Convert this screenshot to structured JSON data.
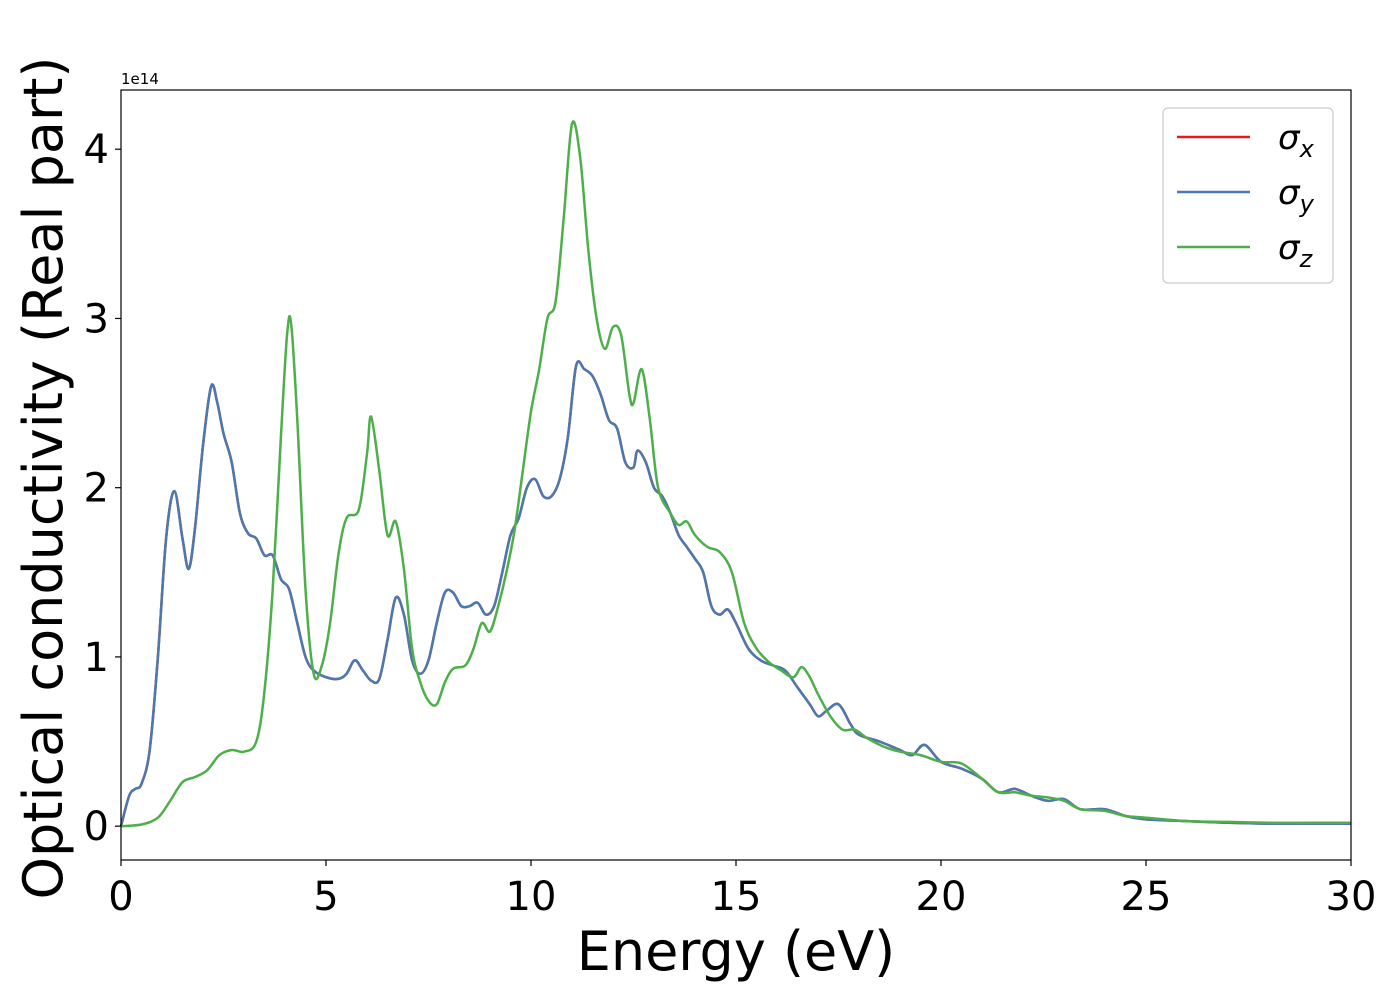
{
  "chart_data": {
    "type": "line",
    "xlabel": "Energy (eV)",
    "ylabel": "Optical conductivity (Real part)",
    "y_offset_text": "1e14",
    "xlim": [
      0,
      30
    ],
    "ylim": [
      -0.2,
      4.35
    ],
    "x_ticks": [
      0,
      5,
      10,
      15,
      20,
      25,
      30
    ],
    "y_ticks": [
      0,
      1,
      2,
      3,
      4
    ],
    "grid": false,
    "legend_position": "top-right",
    "series": [
      {
        "name": "σx",
        "symbol": "σ",
        "subscript": "x",
        "color": "#e41a1c",
        "points": [
          [
            0,
            0
          ],
          [
            0.2,
            0.18
          ],
          [
            0.35,
            0.22
          ],
          [
            0.5,
            0.25
          ],
          [
            0.7,
            0.45
          ],
          [
            0.9,
            1.0
          ],
          [
            1.1,
            1.7
          ],
          [
            1.3,
            1.98
          ],
          [
            1.5,
            1.7
          ],
          [
            1.65,
            1.52
          ],
          [
            1.8,
            1.75
          ],
          [
            2.0,
            2.25
          ],
          [
            2.2,
            2.6
          ],
          [
            2.35,
            2.5
          ],
          [
            2.5,
            2.32
          ],
          [
            2.7,
            2.15
          ],
          [
            2.9,
            1.85
          ],
          [
            3.1,
            1.73
          ],
          [
            3.3,
            1.7
          ],
          [
            3.5,
            1.6
          ],
          [
            3.7,
            1.6
          ],
          [
            3.9,
            1.46
          ],
          [
            4.1,
            1.4
          ],
          [
            4.3,
            1.2
          ],
          [
            4.5,
            1.0
          ],
          [
            4.7,
            0.92
          ],
          [
            5.0,
            0.88
          ],
          [
            5.3,
            0.87
          ],
          [
            5.5,
            0.9
          ],
          [
            5.7,
            0.98
          ],
          [
            5.9,
            0.92
          ],
          [
            6.1,
            0.86
          ],
          [
            6.3,
            0.87
          ],
          [
            6.5,
            1.1
          ],
          [
            6.7,
            1.35
          ],
          [
            6.9,
            1.25
          ],
          [
            7.1,
            0.98
          ],
          [
            7.3,
            0.9
          ],
          [
            7.5,
            0.98
          ],
          [
            7.7,
            1.2
          ],
          [
            7.9,
            1.38
          ],
          [
            8.1,
            1.38
          ],
          [
            8.3,
            1.3
          ],
          [
            8.5,
            1.3
          ],
          [
            8.7,
            1.32
          ],
          [
            8.9,
            1.25
          ],
          [
            9.1,
            1.3
          ],
          [
            9.3,
            1.5
          ],
          [
            9.5,
            1.72
          ],
          [
            9.7,
            1.82
          ],
          [
            9.9,
            2.0
          ],
          [
            10.1,
            2.05
          ],
          [
            10.3,
            1.95
          ],
          [
            10.5,
            1.95
          ],
          [
            10.7,
            2.05
          ],
          [
            10.9,
            2.3
          ],
          [
            11.1,
            2.72
          ],
          [
            11.3,
            2.7
          ],
          [
            11.5,
            2.66
          ],
          [
            11.7,
            2.55
          ],
          [
            11.9,
            2.4
          ],
          [
            12.1,
            2.35
          ],
          [
            12.3,
            2.15
          ],
          [
            12.5,
            2.12
          ],
          [
            12.6,
            2.22
          ],
          [
            12.8,
            2.15
          ],
          [
            13.0,
            2.0
          ],
          [
            13.2,
            1.95
          ],
          [
            13.4,
            1.85
          ],
          [
            13.6,
            1.72
          ],
          [
            13.8,
            1.65
          ],
          [
            14.0,
            1.58
          ],
          [
            14.2,
            1.5
          ],
          [
            14.4,
            1.3
          ],
          [
            14.6,
            1.25
          ],
          [
            14.8,
            1.28
          ],
          [
            15.0,
            1.2
          ],
          [
            15.3,
            1.05
          ],
          [
            15.6,
            0.98
          ],
          [
            15.9,
            0.95
          ],
          [
            16.2,
            0.92
          ],
          [
            16.5,
            0.82
          ],
          [
            16.8,
            0.72
          ],
          [
            17.0,
            0.65
          ],
          [
            17.2,
            0.68
          ],
          [
            17.5,
            0.72
          ],
          [
            17.8,
            0.6
          ],
          [
            18.0,
            0.54
          ],
          [
            18.5,
            0.5
          ],
          [
            19.0,
            0.45
          ],
          [
            19.3,
            0.42
          ],
          [
            19.6,
            0.48
          ],
          [
            20.0,
            0.38
          ],
          [
            20.5,
            0.34
          ],
          [
            21.0,
            0.28
          ],
          [
            21.4,
            0.2
          ],
          [
            21.8,
            0.22
          ],
          [
            22.2,
            0.18
          ],
          [
            22.6,
            0.15
          ],
          [
            23.0,
            0.16
          ],
          [
            23.4,
            0.1
          ],
          [
            24.0,
            0.1
          ],
          [
            24.5,
            0.06
          ],
          [
            25.0,
            0.04
          ],
          [
            26.0,
            0.03
          ],
          [
            27.0,
            0.02
          ],
          [
            28.0,
            0.015
          ],
          [
            29.0,
            0.015
          ],
          [
            30.0,
            0.015
          ]
        ]
      },
      {
        "name": "σy",
        "symbol": "σ",
        "subscript": "y",
        "color": "#4a79b0",
        "points": [
          [
            0,
            0
          ],
          [
            0.2,
            0.18
          ],
          [
            0.35,
            0.22
          ],
          [
            0.5,
            0.25
          ],
          [
            0.7,
            0.45
          ],
          [
            0.9,
            1.0
          ],
          [
            1.1,
            1.7
          ],
          [
            1.3,
            1.98
          ],
          [
            1.5,
            1.7
          ],
          [
            1.65,
            1.52
          ],
          [
            1.8,
            1.75
          ],
          [
            2.0,
            2.25
          ],
          [
            2.2,
            2.6
          ],
          [
            2.35,
            2.5
          ],
          [
            2.5,
            2.32
          ],
          [
            2.7,
            2.15
          ],
          [
            2.9,
            1.85
          ],
          [
            3.1,
            1.73
          ],
          [
            3.3,
            1.7
          ],
          [
            3.5,
            1.6
          ],
          [
            3.7,
            1.6
          ],
          [
            3.9,
            1.46
          ],
          [
            4.1,
            1.4
          ],
          [
            4.3,
            1.2
          ],
          [
            4.5,
            1.0
          ],
          [
            4.7,
            0.92
          ],
          [
            5.0,
            0.88
          ],
          [
            5.3,
            0.87
          ],
          [
            5.5,
            0.9
          ],
          [
            5.7,
            0.98
          ],
          [
            5.9,
            0.92
          ],
          [
            6.1,
            0.86
          ],
          [
            6.3,
            0.87
          ],
          [
            6.5,
            1.1
          ],
          [
            6.7,
            1.35
          ],
          [
            6.9,
            1.25
          ],
          [
            7.1,
            0.98
          ],
          [
            7.3,
            0.9
          ],
          [
            7.5,
            0.98
          ],
          [
            7.7,
            1.2
          ],
          [
            7.9,
            1.38
          ],
          [
            8.1,
            1.38
          ],
          [
            8.3,
            1.3
          ],
          [
            8.5,
            1.3
          ],
          [
            8.7,
            1.32
          ],
          [
            8.9,
            1.25
          ],
          [
            9.1,
            1.3
          ],
          [
            9.3,
            1.5
          ],
          [
            9.5,
            1.72
          ],
          [
            9.7,
            1.82
          ],
          [
            9.9,
            2.0
          ],
          [
            10.1,
            2.05
          ],
          [
            10.3,
            1.95
          ],
          [
            10.5,
            1.95
          ],
          [
            10.7,
            2.05
          ],
          [
            10.9,
            2.3
          ],
          [
            11.1,
            2.72
          ],
          [
            11.3,
            2.7
          ],
          [
            11.5,
            2.66
          ],
          [
            11.7,
            2.55
          ],
          [
            11.9,
            2.4
          ],
          [
            12.1,
            2.35
          ],
          [
            12.3,
            2.15
          ],
          [
            12.5,
            2.12
          ],
          [
            12.6,
            2.22
          ],
          [
            12.8,
            2.15
          ],
          [
            13.0,
            2.0
          ],
          [
            13.2,
            1.95
          ],
          [
            13.4,
            1.85
          ],
          [
            13.6,
            1.72
          ],
          [
            13.8,
            1.65
          ],
          [
            14.0,
            1.58
          ],
          [
            14.2,
            1.5
          ],
          [
            14.4,
            1.3
          ],
          [
            14.6,
            1.25
          ],
          [
            14.8,
            1.28
          ],
          [
            15.0,
            1.2
          ],
          [
            15.3,
            1.05
          ],
          [
            15.6,
            0.98
          ],
          [
            15.9,
            0.95
          ],
          [
            16.2,
            0.92
          ],
          [
            16.5,
            0.82
          ],
          [
            16.8,
            0.72
          ],
          [
            17.0,
            0.65
          ],
          [
            17.2,
            0.68
          ],
          [
            17.5,
            0.72
          ],
          [
            17.8,
            0.6
          ],
          [
            18.0,
            0.54
          ],
          [
            18.5,
            0.5
          ],
          [
            19.0,
            0.45
          ],
          [
            19.3,
            0.42
          ],
          [
            19.6,
            0.48
          ],
          [
            20.0,
            0.38
          ],
          [
            20.5,
            0.34
          ],
          [
            21.0,
            0.28
          ],
          [
            21.4,
            0.2
          ],
          [
            21.8,
            0.22
          ],
          [
            22.2,
            0.18
          ],
          [
            22.6,
            0.15
          ],
          [
            23.0,
            0.16
          ],
          [
            23.4,
            0.1
          ],
          [
            24.0,
            0.1
          ],
          [
            24.5,
            0.06
          ],
          [
            25.0,
            0.04
          ],
          [
            26.0,
            0.03
          ],
          [
            27.0,
            0.02
          ],
          [
            28.0,
            0.015
          ],
          [
            29.0,
            0.015
          ],
          [
            30.0,
            0.015
          ]
        ]
      },
      {
        "name": "σz",
        "symbol": "σ",
        "subscript": "z",
        "color": "#4daf4a",
        "points": [
          [
            0,
            0
          ],
          [
            0.5,
            0.01
          ],
          [
            0.9,
            0.05
          ],
          [
            1.2,
            0.15
          ],
          [
            1.5,
            0.26
          ],
          [
            1.8,
            0.29
          ],
          [
            2.1,
            0.33
          ],
          [
            2.4,
            0.42
          ],
          [
            2.7,
            0.45
          ],
          [
            3.0,
            0.44
          ],
          [
            3.3,
            0.5
          ],
          [
            3.5,
            0.8
          ],
          [
            3.7,
            1.4
          ],
          [
            3.9,
            2.3
          ],
          [
            4.05,
            2.9
          ],
          [
            4.15,
            2.97
          ],
          [
            4.3,
            2.4
          ],
          [
            4.5,
            1.4
          ],
          [
            4.7,
            0.9
          ],
          [
            4.9,
            0.95
          ],
          [
            5.1,
            1.2
          ],
          [
            5.3,
            1.6
          ],
          [
            5.5,
            1.82
          ],
          [
            5.8,
            1.87
          ],
          [
            6.0,
            2.2
          ],
          [
            6.1,
            2.42
          ],
          [
            6.3,
            2.1
          ],
          [
            6.5,
            1.72
          ],
          [
            6.7,
            1.8
          ],
          [
            6.9,
            1.52
          ],
          [
            7.1,
            1.05
          ],
          [
            7.3,
            0.85
          ],
          [
            7.5,
            0.74
          ],
          [
            7.7,
            0.72
          ],
          [
            7.9,
            0.85
          ],
          [
            8.1,
            0.93
          ],
          [
            8.4,
            0.95
          ],
          [
            8.6,
            1.05
          ],
          [
            8.8,
            1.2
          ],
          [
            9.0,
            1.15
          ],
          [
            9.2,
            1.3
          ],
          [
            9.4,
            1.5
          ],
          [
            9.6,
            1.75
          ],
          [
            9.8,
            2.1
          ],
          [
            10.0,
            2.45
          ],
          [
            10.2,
            2.7
          ],
          [
            10.4,
            3.0
          ],
          [
            10.6,
            3.1
          ],
          [
            10.8,
            3.6
          ],
          [
            11.0,
            4.15
          ],
          [
            11.2,
            3.95
          ],
          [
            11.4,
            3.4
          ],
          [
            11.6,
            3.0
          ],
          [
            11.8,
            2.82
          ],
          [
            12.0,
            2.95
          ],
          [
            12.2,
            2.9
          ],
          [
            12.4,
            2.55
          ],
          [
            12.5,
            2.5
          ],
          [
            12.7,
            2.7
          ],
          [
            12.9,
            2.4
          ],
          [
            13.1,
            2.0
          ],
          [
            13.4,
            1.85
          ],
          [
            13.6,
            1.78
          ],
          [
            13.8,
            1.8
          ],
          [
            14.0,
            1.72
          ],
          [
            14.3,
            1.65
          ],
          [
            14.6,
            1.62
          ],
          [
            14.9,
            1.5
          ],
          [
            15.2,
            1.2
          ],
          [
            15.5,
            1.05
          ],
          [
            15.8,
            0.97
          ],
          [
            16.1,
            0.92
          ],
          [
            16.4,
            0.88
          ],
          [
            16.6,
            0.94
          ],
          [
            16.8,
            0.88
          ],
          [
            17.0,
            0.78
          ],
          [
            17.3,
            0.65
          ],
          [
            17.6,
            0.57
          ],
          [
            17.9,
            0.57
          ],
          [
            18.2,
            0.52
          ],
          [
            18.6,
            0.47
          ],
          [
            19.0,
            0.44
          ],
          [
            19.5,
            0.42
          ],
          [
            20.0,
            0.38
          ],
          [
            20.5,
            0.37
          ],
          [
            21.0,
            0.28
          ],
          [
            21.4,
            0.2
          ],
          [
            21.8,
            0.2
          ],
          [
            22.2,
            0.18
          ],
          [
            22.6,
            0.17
          ],
          [
            23.0,
            0.15
          ],
          [
            23.4,
            0.1
          ],
          [
            24.0,
            0.09
          ],
          [
            24.5,
            0.06
          ],
          [
            25.0,
            0.05
          ],
          [
            26.0,
            0.03
          ],
          [
            27.0,
            0.025
          ],
          [
            28.0,
            0.02
          ],
          [
            29.0,
            0.02
          ],
          [
            30.0,
            0.02
          ]
        ]
      }
    ]
  }
}
